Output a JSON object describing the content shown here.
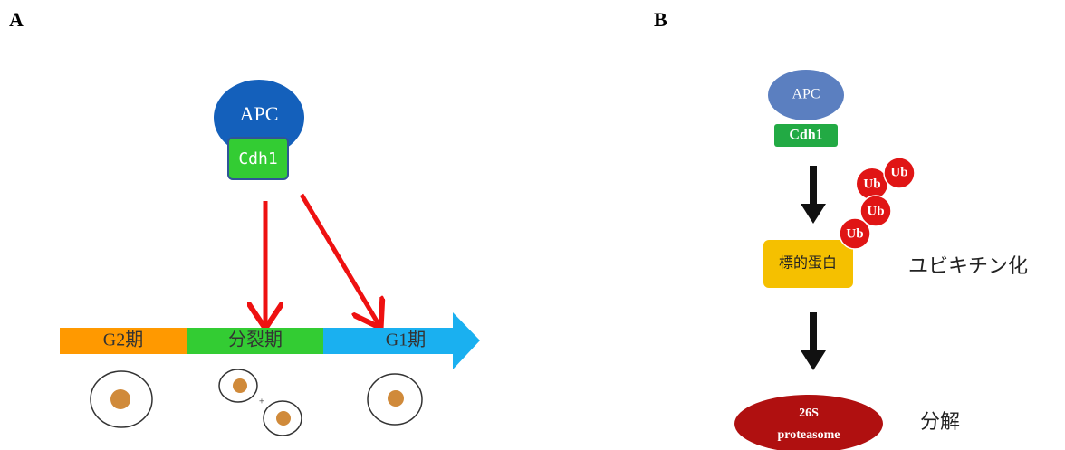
{
  "panel_a": {
    "label": "A",
    "apc": "APC",
    "cdh1": "Cdh1",
    "phases": [
      "G2期",
      "分裂期",
      "G1期"
    ],
    "plus": "+"
  },
  "panel_b": {
    "label": "B",
    "apc": "APC",
    "cdh1": "Cdh1",
    "ub": [
      "Ub",
      "Ub",
      "Ub",
      "Ub"
    ],
    "target": "標的蛋白",
    "ubiquitination": "ユビキチン化",
    "proteasome": [
      "26S",
      "proteasome"
    ],
    "degradation": "分解"
  }
}
